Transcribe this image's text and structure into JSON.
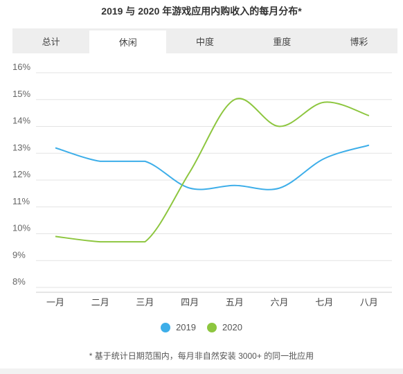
{
  "page_title": "2019 与 2020 年游戏应用内购收入的每月分布*",
  "tabs": [
    {
      "label": "总计",
      "active": false
    },
    {
      "label": "休闲",
      "active": true
    },
    {
      "label": "中度",
      "active": false
    },
    {
      "label": "重度",
      "active": false
    },
    {
      "label": "博彩",
      "active": false
    }
  ],
  "footnote": "* 基于统计日期范围内，每月非自然安装 3000+ 的同一批应用",
  "chart_data": {
    "type": "line",
    "title": "2019 与 2020 年游戏应用内购收入的每月分布*",
    "categories": [
      "一月",
      "二月",
      "三月",
      "四月",
      "五月",
      "六月",
      "七月",
      "八月"
    ],
    "y_ticks": [
      "8%",
      "9%",
      "10%",
      "11%",
      "12%",
      "13%",
      "14%",
      "15%",
      "16%"
    ],
    "ylim": [
      8,
      16
    ],
    "y_unit": "%",
    "grid": true,
    "legend_position": "bottom-center",
    "series": [
      {
        "name": "2019",
        "color": "#3daee9",
        "values": [
          13.2,
          12.7,
          12.7,
          11.7,
          11.8,
          11.7,
          12.8,
          13.3
        ]
      },
      {
        "name": "2020",
        "color": "#8dc63f",
        "values": [
          9.9,
          9.7,
          9.7,
          12.3,
          15.0,
          14.0,
          14.9,
          14.4
        ]
      }
    ]
  }
}
